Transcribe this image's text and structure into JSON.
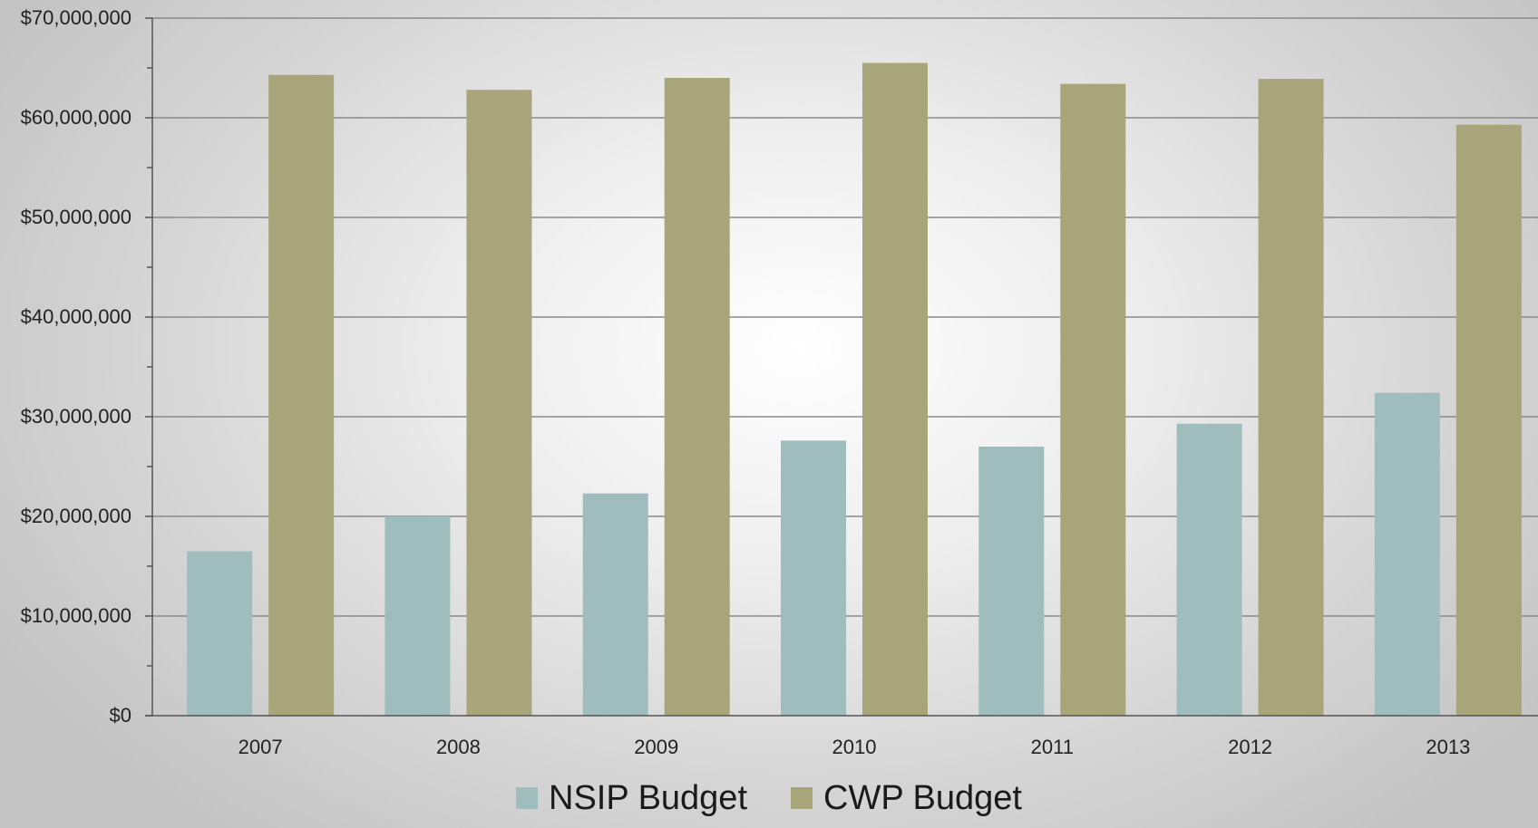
{
  "chart_data": {
    "type": "bar",
    "categories": [
      "2007",
      "2008",
      "2009",
      "2010",
      "2011",
      "2012",
      "2013"
    ],
    "series": [
      {
        "name": "NSIP Budget",
        "color": "#9fbdbd",
        "values": [
          16500000,
          20000000,
          22300000,
          27600000,
          27000000,
          29300000,
          32400000
        ]
      },
      {
        "name": "CWP Budget",
        "color": "#a8a57b",
        "values": [
          64300000,
          62800000,
          64000000,
          65500000,
          63400000,
          63900000,
          59300000
        ]
      }
    ],
    "ylim": [
      0,
      70000000
    ],
    "yticks": [
      0,
      10000000,
      20000000,
      30000000,
      40000000,
      50000000,
      60000000,
      70000000
    ],
    "ytick_labels": [
      "$0",
      "$10,000,000",
      "$20,000,000",
      "$30,000,000",
      "$40,000,000",
      "$50,000,000",
      "$60,000,000",
      "$70,000,000"
    ],
    "xlabel": "",
    "ylabel": "",
    "title": "",
    "grid": true,
    "legend_position": "bottom"
  }
}
